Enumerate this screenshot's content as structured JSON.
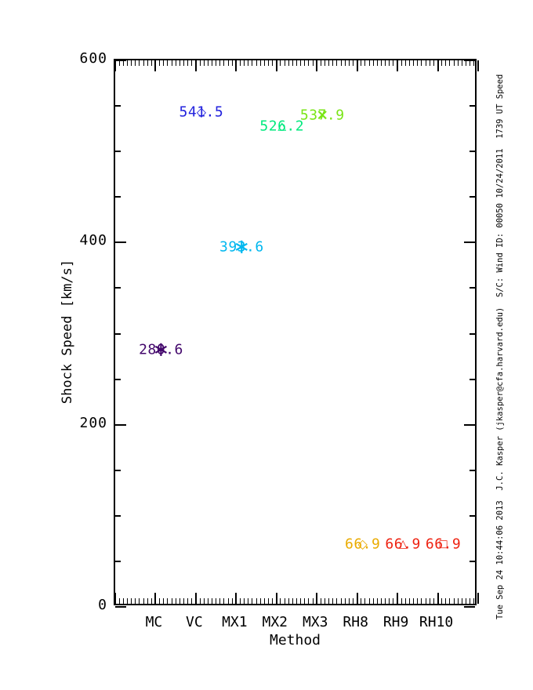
{
  "figure": {
    "background": "#ffffff",
    "frame_color": "#000000"
  },
  "chart_data": {
    "type": "scatter",
    "title": "",
    "xlabel": "Method",
    "ylabel": "Shock Speed [km/s]",
    "x_categories": [
      "MC",
      "VC",
      "MX1",
      "MX2",
      "MX3",
      "RH8",
      "RH9",
      "RH10"
    ],
    "ylim": [
      0,
      600
    ],
    "yticks": [
      0,
      200,
      400,
      600
    ],
    "ytick_labels": [
      "0",
      "200",
      "400",
      "600"
    ],
    "y_minor_step": 50,
    "x_minor_per_major": 10,
    "grid": false,
    "legend": false,
    "points": [
      {
        "category": "MC",
        "value": 280.6,
        "label": "280.6",
        "color": "#42066b",
        "marker": "asterisk"
      },
      {
        "category": "VC",
        "value": 541.5,
        "label": "541.5",
        "color": "#2222dd",
        "marker": "diamond"
      },
      {
        "category": "MX1",
        "value": 393.6,
        "label": "393.6",
        "color": "#00b7ef",
        "marker": "asterisk"
      },
      {
        "category": "MX2",
        "value": 526.2,
        "label": "526.2",
        "color": "#00e97e",
        "marker": "triangle"
      },
      {
        "category": "MX3",
        "value": 537.9,
        "label": "537.9",
        "color": "#79e515",
        "marker": "x"
      },
      {
        "category": "RH8",
        "value": 66.9,
        "label": "66.9",
        "color": "#eaab00",
        "marker": "diamond"
      },
      {
        "category": "RH9",
        "value": 66.9,
        "label": "66.9",
        "color": "#ee2211",
        "marker": "triangle"
      },
      {
        "category": "RH10",
        "value": 66.9,
        "label": "66.9",
        "color": "#ee2211",
        "marker": "square"
      }
    ]
  },
  "annotation": {
    "right_vertical": "Tue Sep 24 10:44:06 2013  J.C. Kasper (jkasper@cfa.harvard.edu)  S/C: Wind ID: 00050 10/24/2011  1739 UT Speed"
  }
}
